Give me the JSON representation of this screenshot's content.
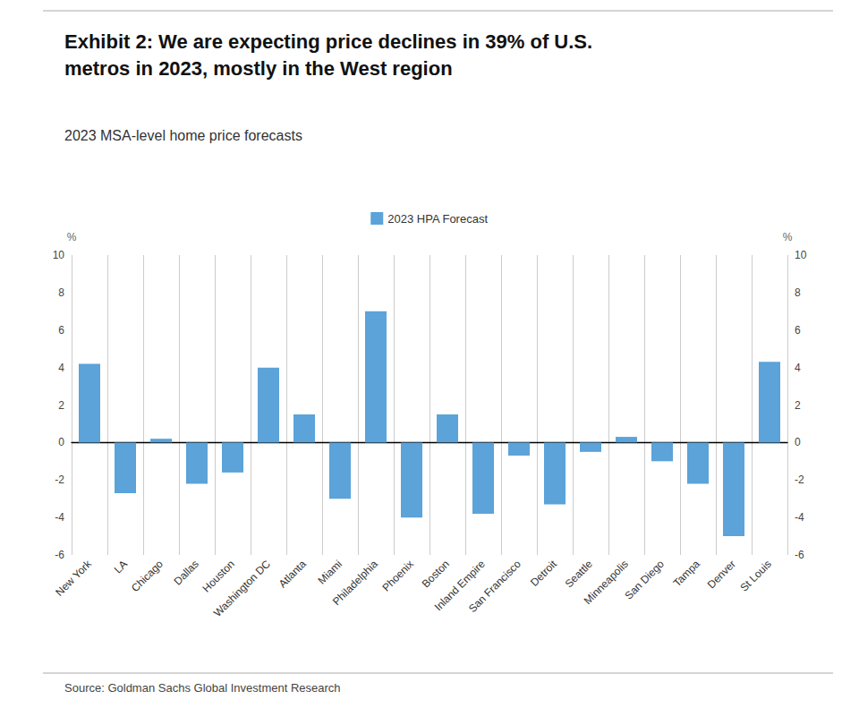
{
  "chart_data": {
    "type": "bar",
    "title": "Exhibit 2: We are expecting price declines in 39% of U.S.\nmetros in 2023, mostly in the West region",
    "subtitle": "2023 MSA-level home price forecasts",
    "source": "Source: Goldman Sachs Global Investment Research",
    "categories": [
      "New York",
      "LA",
      "Chicago",
      "Dallas",
      "Houston",
      "Washington DC",
      "Atlanta",
      "Miami",
      "Philadelphia",
      "Phoenix",
      "Boston",
      "Inland Empire",
      "San Francisco",
      "Detroit",
      "Seattle",
      "Minneapolis",
      "San Diego",
      "Tampa",
      "Denver",
      "St Louis"
    ],
    "series": [
      {
        "name": "2023 HPA Forecast",
        "color": "#5BA3D9",
        "values": [
          4.2,
          -2.7,
          0.2,
          -2.2,
          -1.6,
          4.0,
          1.5,
          -3.0,
          7.0,
          -4.0,
          1.5,
          -3.8,
          -0.7,
          -3.3,
          -0.5,
          0.3,
          -1.0,
          -2.2,
          -5.0,
          4.3
        ]
      }
    ],
    "ylabel": "%",
    "y2label": "%",
    "ylim": [
      -6,
      10
    ],
    "yticks": [
      -6,
      -4,
      -2,
      0,
      2,
      4,
      6,
      8,
      10
    ],
    "y2lim": [
      -6,
      10
    ],
    "y2ticks": [
      -6,
      -4,
      -2,
      0,
      2,
      4,
      6,
      8,
      10
    ],
    "grid": true,
    "legend": "top"
  }
}
